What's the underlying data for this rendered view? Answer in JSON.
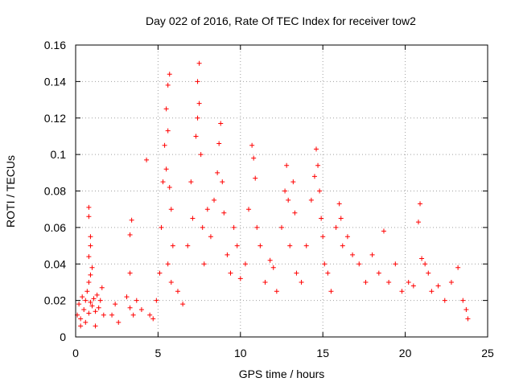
{
  "chart_data": {
    "type": "scatter",
    "title": "Day 022 of 2016, Rate Of TEC Index for receiver tow2",
    "xlabel": "GPS time / hours",
    "ylabel": "ROTI / TECUs",
    "xlim": [
      0,
      25
    ],
    "ylim": [
      0,
      0.16
    ],
    "xticks": [
      0,
      5,
      10,
      15,
      20,
      25
    ],
    "xtick_labels": [
      "0",
      "5",
      "10",
      "15",
      "20",
      "25"
    ],
    "yticks": [
      0,
      0.02,
      0.04,
      0.06,
      0.08,
      0.1,
      0.12,
      0.14,
      0.16
    ],
    "ytick_labels": [
      "0",
      "0.02",
      "0.04",
      "0.06",
      "0.08",
      "0.1",
      "0.12",
      "0.14",
      "0.16"
    ],
    "grid": true,
    "marker": "+",
    "color": "#ff0000",
    "series": [
      {
        "name": "ROTI",
        "points": [
          [
            0.1,
            0.012
          ],
          [
            0.2,
            0.018
          ],
          [
            0.3,
            0.01
          ],
          [
            0.4,
            0.022
          ],
          [
            0.5,
            0.015
          ],
          [
            0.6,
            0.02
          ],
          [
            0.7,
            0.025
          ],
          [
            0.8,
            0.013
          ],
          [
            0.9,
            0.019
          ],
          [
            1.0,
            0.017
          ],
          [
            1.1,
            0.021
          ],
          [
            1.2,
            0.014
          ],
          [
            1.3,
            0.023
          ],
          [
            1.4,
            0.016
          ],
          [
            1.5,
            0.02
          ],
          [
            1.6,
            0.027
          ],
          [
            1.7,
            0.012
          ],
          [
            0.3,
            0.006
          ],
          [
            0.6,
            0.008
          ],
          [
            1.2,
            0.006
          ],
          [
            0.8,
            0.071
          ],
          [
            0.8,
            0.066
          ],
          [
            0.9,
            0.055
          ],
          [
            0.9,
            0.05
          ],
          [
            0.8,
            0.044
          ],
          [
            0.9,
            0.034
          ],
          [
            0.8,
            0.03
          ],
          [
            1.0,
            0.038
          ],
          [
            2.2,
            0.012
          ],
          [
            2.4,
            0.018
          ],
          [
            2.6,
            0.008
          ],
          [
            3.1,
            0.022
          ],
          [
            3.3,
            0.016
          ],
          [
            3.3,
            0.035
          ],
          [
            3.4,
            0.064
          ],
          [
            3.3,
            0.056
          ],
          [
            3.5,
            0.012
          ],
          [
            3.7,
            0.02
          ],
          [
            4.0,
            0.015
          ],
          [
            4.3,
            0.097
          ],
          [
            4.5,
            0.012
          ],
          [
            4.7,
            0.01
          ],
          [
            4.9,
            0.02
          ],
          [
            5.1,
            0.035
          ],
          [
            5.2,
            0.06
          ],
          [
            5.3,
            0.085
          ],
          [
            5.4,
            0.105
          ],
          [
            5.5,
            0.125
          ],
          [
            5.6,
            0.138
          ],
          [
            5.7,
            0.144
          ],
          [
            5.6,
            0.113
          ],
          [
            5.5,
            0.092
          ],
          [
            5.7,
            0.082
          ],
          [
            5.8,
            0.07
          ],
          [
            5.9,
            0.05
          ],
          [
            5.6,
            0.04
          ],
          [
            5.8,
            0.03
          ],
          [
            6.2,
            0.025
          ],
          [
            6.5,
            0.018
          ],
          [
            6.8,
            0.05
          ],
          [
            7.0,
            0.085
          ],
          [
            7.1,
            0.065
          ],
          [
            7.3,
            0.11
          ],
          [
            7.4,
            0.14
          ],
          [
            7.5,
            0.15
          ],
          [
            7.5,
            0.128
          ],
          [
            7.4,
            0.12
          ],
          [
            7.6,
            0.1
          ],
          [
            7.7,
            0.06
          ],
          [
            7.8,
            0.04
          ],
          [
            8.0,
            0.07
          ],
          [
            8.2,
            0.055
          ],
          [
            8.4,
            0.075
          ],
          [
            8.6,
            0.09
          ],
          [
            8.7,
            0.106
          ],
          [
            8.8,
            0.117
          ],
          [
            8.9,
            0.085
          ],
          [
            9.0,
            0.068
          ],
          [
            9.2,
            0.045
          ],
          [
            9.4,
            0.035
          ],
          [
            9.6,
            0.06
          ],
          [
            9.8,
            0.05
          ],
          [
            10.0,
            0.032
          ],
          [
            10.3,
            0.04
          ],
          [
            10.5,
            0.07
          ],
          [
            10.7,
            0.105
          ],
          [
            10.8,
            0.098
          ],
          [
            10.9,
            0.087
          ],
          [
            11.0,
            0.06
          ],
          [
            11.2,
            0.05
          ],
          [
            11.5,
            0.03
          ],
          [
            11.8,
            0.042
          ],
          [
            12.0,
            0.038
          ],
          [
            12.2,
            0.025
          ],
          [
            12.5,
            0.06
          ],
          [
            12.7,
            0.08
          ],
          [
            12.8,
            0.094
          ],
          [
            12.9,
            0.075
          ],
          [
            13.0,
            0.05
          ],
          [
            13.2,
            0.085
          ],
          [
            13.3,
            0.068
          ],
          [
            13.4,
            0.035
          ],
          [
            13.7,
            0.03
          ],
          [
            14.0,
            0.05
          ],
          [
            14.3,
            0.075
          ],
          [
            14.5,
            0.088
          ],
          [
            14.6,
            0.103
          ],
          [
            14.7,
            0.094
          ],
          [
            14.8,
            0.08
          ],
          [
            14.9,
            0.065
          ],
          [
            15.0,
            0.055
          ],
          [
            15.1,
            0.04
          ],
          [
            15.3,
            0.035
          ],
          [
            15.5,
            0.025
          ],
          [
            15.8,
            0.06
          ],
          [
            16.0,
            0.073
          ],
          [
            16.1,
            0.065
          ],
          [
            16.2,
            0.05
          ],
          [
            16.5,
            0.055
          ],
          [
            16.8,
            0.045
          ],
          [
            17.2,
            0.04
          ],
          [
            17.6,
            0.03
          ],
          [
            18.0,
            0.045
          ],
          [
            18.4,
            0.035
          ],
          [
            18.7,
            0.058
          ],
          [
            19.0,
            0.03
          ],
          [
            19.4,
            0.04
          ],
          [
            19.8,
            0.025
          ],
          [
            20.2,
            0.03
          ],
          [
            20.5,
            0.028
          ],
          [
            20.8,
            0.063
          ],
          [
            20.9,
            0.073
          ],
          [
            21.0,
            0.043
          ],
          [
            21.2,
            0.04
          ],
          [
            21.4,
            0.035
          ],
          [
            21.6,
            0.025
          ],
          [
            22.0,
            0.028
          ],
          [
            22.4,
            0.02
          ],
          [
            22.8,
            0.03
          ],
          [
            23.2,
            0.038
          ],
          [
            23.5,
            0.02
          ],
          [
            23.7,
            0.015
          ],
          [
            23.8,
            0.01
          ]
        ]
      }
    ]
  }
}
